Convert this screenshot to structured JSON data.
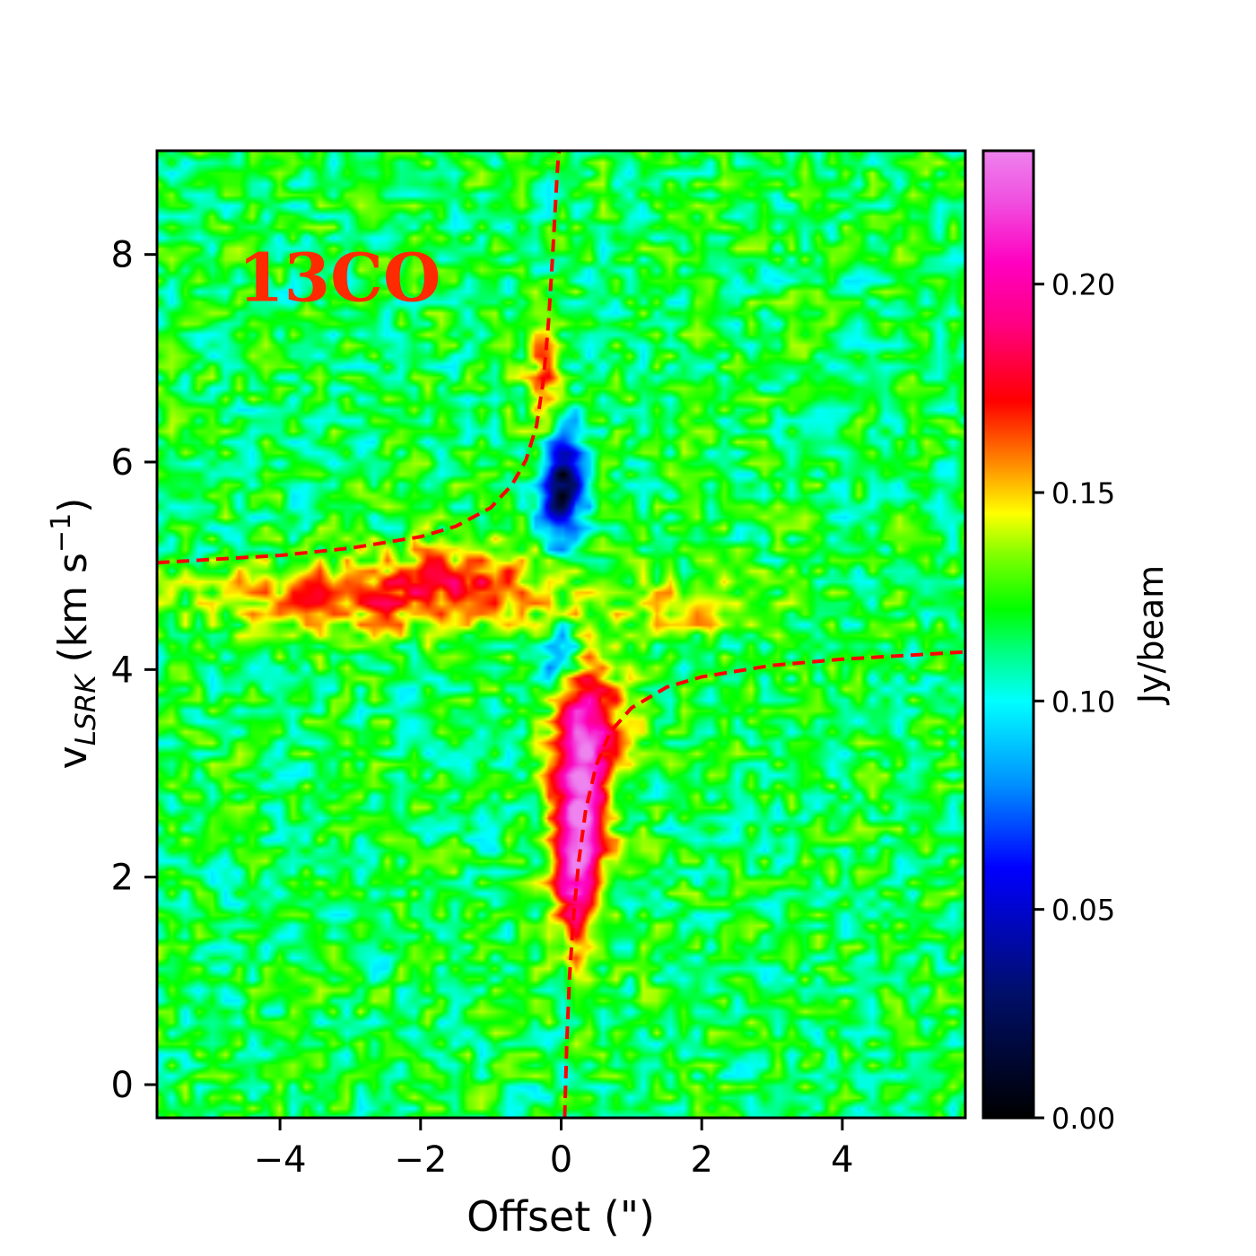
{
  "chart_data": {
    "type": "heatmap",
    "title": "",
    "xlabel": "Offset (\")",
    "ylabel_main": "v",
    "ylabel_sub": "LSRK",
    "ylabel_tail": " (km s",
    "ylabel_sup": "−1",
    "ylabel_end": ")",
    "xlim": [
      -5.75,
      5.75
    ],
    "ylim": [
      -0.32,
      9.0
    ],
    "xticks": [
      -4,
      -2,
      0,
      2,
      4
    ],
    "xtick_labels": [
      "−4",
      "−2",
      "0",
      "2",
      "4"
    ],
    "yticks": [
      0,
      2,
      4,
      6,
      8
    ],
    "ytick_labels": [
      "0",
      "2",
      "4",
      "6",
      "8"
    ],
    "grid": false,
    "annotation": {
      "text": "13CO",
      "x": -4.6,
      "y": 7.55,
      "color": "#ff2a00"
    },
    "colorbar": {
      "label": "Jy/beam",
      "range": [
        0.0,
        0.232
      ],
      "ticks": [
        0.0,
        0.05,
        0.1,
        0.15,
        0.2
      ],
      "tick_labels": [
        "0.00",
        "0.05",
        "0.10",
        "0.15",
        "0.20"
      ],
      "colormap": "gist_ncar-like",
      "stops": [
        {
          "v": 0.0,
          "color": "#000000"
        },
        {
          "v": 0.03,
          "color": "#000f6a"
        },
        {
          "v": 0.06,
          "color": "#0000ff"
        },
        {
          "v": 0.08,
          "color": "#0090ff"
        },
        {
          "v": 0.1,
          "color": "#00ffff"
        },
        {
          "v": 0.112,
          "color": "#00ff80"
        },
        {
          "v": 0.122,
          "color": "#00ff00"
        },
        {
          "v": 0.135,
          "color": "#80ff00"
        },
        {
          "v": 0.145,
          "color": "#ffff00"
        },
        {
          "v": 0.158,
          "color": "#ff8000"
        },
        {
          "v": 0.172,
          "color": "#ff0000"
        },
        {
          "v": 0.19,
          "color": "#ff0080"
        },
        {
          "v": 0.205,
          "color": "#ff00c0"
        },
        {
          "v": 0.22,
          "color": "#f050e0"
        },
        {
          "v": 0.232,
          "color": "#ee82ee"
        }
      ]
    },
    "background_level": 0.118,
    "features": [
      {
        "name": "extended-emission-band-west",
        "x": -3.2,
        "y": 4.7,
        "sx": 1.35,
        "sy": 0.24,
        "amp": 0.04
      },
      {
        "name": "extended-emission-band-mid",
        "x": -1.3,
        "y": 4.85,
        "sx": 0.95,
        "sy": 0.28,
        "amp": 0.04
      },
      {
        "name": "extended-emission-band-east",
        "x": 1.8,
        "y": 4.6,
        "sx": 0.75,
        "sy": 0.18,
        "amp": 0.032
      },
      {
        "name": "absorption-dip-upper",
        "x": 0.0,
        "y": 5.75,
        "sx": 0.22,
        "sy": 0.38,
        "amp": -0.105
      },
      {
        "name": "absorption-dip-lower",
        "x": 0.0,
        "y": 4.15,
        "sx": 0.18,
        "sy": 0.18,
        "amp": -0.06
      },
      {
        "name": "red-lobe-upper",
        "x": -0.25,
        "y": 6.75,
        "sx": 0.18,
        "sy": 0.45,
        "amp": 0.04
      },
      {
        "name": "blue-lobe-peak",
        "x": 0.3,
        "y": 2.95,
        "sx": 0.28,
        "sy": 0.75,
        "amp": 0.1
      },
      {
        "name": "blue-lobe-tail",
        "x": 0.2,
        "y": 2.0,
        "sx": 0.22,
        "sy": 0.55,
        "amp": 0.06
      },
      {
        "name": "blue-lobe-shoulder",
        "x": 0.65,
        "y": 3.55,
        "sx": 0.35,
        "sy": 0.3,
        "amp": 0.03
      }
    ],
    "series": [
      {
        "style": "dashed",
        "color": "#ff0000",
        "segments": [
          {
            "x": [
              -5.75,
              -4,
              -3,
              -2,
              -1.5,
              -1,
              -0.7,
              -0.5,
              -0.35,
              -0.25,
              -0.18,
              -0.12,
              -0.08,
              -0.05,
              -0.03
            ],
            "y": [
              5.03,
              5.1,
              5.17,
              5.28,
              5.38,
              5.56,
              5.78,
              6.02,
              6.35,
              6.8,
              7.35,
              8.0,
              8.5,
              8.85,
              9.0
            ]
          },
          {
            "x": [
              0.05,
              0.08,
              0.12,
              0.18,
              0.25,
              0.35,
              0.5,
              0.7,
              1.0,
              1.5,
              2.0,
              3.0,
              4.0,
              5.75
            ],
            "y": [
              -0.32,
              0.4,
              1.05,
              1.65,
              2.15,
              2.65,
              3.08,
              3.4,
              3.63,
              3.83,
              3.93,
              4.04,
              4.1,
              4.17
            ]
          }
        ]
      }
    ]
  }
}
